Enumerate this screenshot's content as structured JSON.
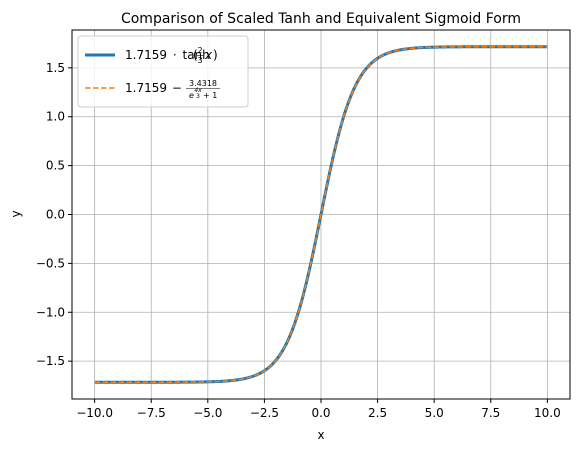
{
  "chart_data": {
    "type": "line",
    "title": "Comparison of Scaled Tanh and Equivalent Sigmoid Form",
    "xlabel": "x",
    "ylabel": "y",
    "xlim": [
      -11.0,
      11.0
    ],
    "ylim": [
      -1.887,
      1.887
    ],
    "x_ticks": [
      -10.0,
      -7.5,
      -5.0,
      -2.5,
      0.0,
      2.5,
      5.0,
      7.5,
      10.0
    ],
    "x_tick_labels": [
      "−10.0",
      "−7.5",
      "−5.0",
      "−2.5",
      "0.0",
      "2.5",
      "5.0",
      "7.5",
      "10.0"
    ],
    "y_ticks": [
      -1.5,
      -1.0,
      -0.5,
      0.0,
      0.5,
      1.0,
      1.5
    ],
    "y_tick_labels": [
      "−1.5",
      "−1.0",
      "−0.5",
      "0.0",
      "0.5",
      "1.0",
      "1.5"
    ],
    "grid": true,
    "legend_position": "upper-left",
    "x_domain": [
      -10,
      10
    ],
    "series": [
      {
        "name_parts": {
          "coef": "1.7159",
          "func": "tanh",
          "frac_num": "2",
          "frac_den": "3",
          "var": "x"
        },
        "color": "#1f77b4",
        "style": "solid",
        "width": 3,
        "formula": "1.7159*tanh(2x/3)"
      },
      {
        "name_parts": {
          "coef": "1.7159",
          "minus": "−",
          "num": "3.4318",
          "den_base": "e",
          "den_exp_num": "4x",
          "den_exp_den": "3",
          "den_plus": "+ 1"
        },
        "color": "#ff7f0e",
        "style": "dashed",
        "width": 1.5,
        "formula": "1.7159 - 3.4318/(exp(4x/3)+1)"
      }
    ]
  }
}
